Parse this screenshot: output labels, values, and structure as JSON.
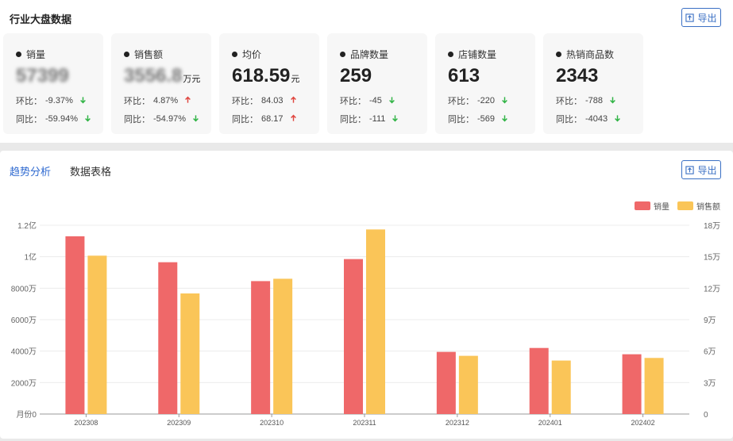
{
  "top": {
    "title": "行业大盘数据",
    "export_label": "导出"
  },
  "cards": [
    {
      "label": "销量",
      "value": "57399",
      "unit": "",
      "blurred": true,
      "mom": {
        "label": "环比：",
        "value": "-9.37%",
        "dir": "down"
      },
      "yoy": {
        "label": "同比：",
        "value": "-59.94%",
        "dir": "down"
      }
    },
    {
      "label": "销售额",
      "value": "3556.8",
      "unit": "万元",
      "blurred": true,
      "mom": {
        "label": "环比：",
        "value": "4.87%",
        "dir": "up"
      },
      "yoy": {
        "label": "同比：",
        "value": "-54.97%",
        "dir": "down"
      }
    },
    {
      "label": "均价",
      "value": "618.59",
      "unit": "元",
      "blurred": false,
      "mom": {
        "label": "环比：",
        "value": "84.03",
        "dir": "up"
      },
      "yoy": {
        "label": "同比：",
        "value": "68.17",
        "dir": "up"
      }
    },
    {
      "label": "品牌数量",
      "value": "259",
      "unit": "",
      "blurred": false,
      "mom": {
        "label": "环比：",
        "value": "-45",
        "dir": "down"
      },
      "yoy": {
        "label": "同比：",
        "value": "-111",
        "dir": "down"
      }
    },
    {
      "label": "店铺数量",
      "value": "613",
      "unit": "",
      "blurred": false,
      "mom": {
        "label": "环比：",
        "value": "-220",
        "dir": "down"
      },
      "yoy": {
        "label": "同比：",
        "value": "-569",
        "dir": "down"
      }
    },
    {
      "label": "热销商品数",
      "value": "2343",
      "unit": "",
      "blurred": false,
      "mom": {
        "label": "环比：",
        "value": "-788",
        "dir": "down"
      },
      "yoy": {
        "label": "同比：",
        "value": "-4043",
        "dir": "down"
      }
    }
  ],
  "colors": {
    "accent": "#2f6ad0",
    "up": "#e0463f",
    "down": "#2fb344",
    "series_sales": "#ef6869",
    "series_revenue": "#fac558"
  },
  "bottom": {
    "tabs": [
      {
        "label": "趋势分析",
        "active": true
      },
      {
        "label": "数据表格",
        "active": false
      }
    ],
    "export_label": "导出"
  },
  "chart_data": {
    "type": "bar",
    "categories": [
      "202308",
      "202309",
      "202310",
      "202311",
      "202312",
      "202401",
      "202402"
    ],
    "x_axis_name": "月份",
    "series": [
      {
        "name": "销量",
        "axis": "left",
        "values": [
          113000000,
          96500000,
          84500000,
          98500000,
          39500000,
          42000000,
          38000000
        ]
      },
      {
        "name": "销售额",
        "axis": "right",
        "values": [
          151000,
          115000,
          129000,
          176000,
          55500,
          51000,
          53500
        ]
      }
    ],
    "y_left": {
      "min": 0,
      "max": 120000000,
      "ticks": [
        "0",
        "2000万",
        "4000万",
        "6000万",
        "8000万",
        "1亿",
        "1.2亿"
      ]
    },
    "y_right": {
      "min": 0,
      "max": 180000,
      "ticks": [
        "0",
        "3万",
        "6万",
        "9万",
        "12万",
        "15万",
        "18万"
      ]
    },
    "legend_position": "top-right",
    "grid": true
  }
}
